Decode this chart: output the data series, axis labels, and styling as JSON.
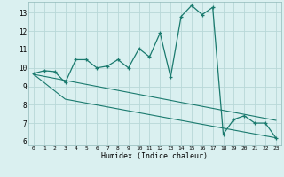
{
  "title": "",
  "xlabel": "Humidex (Indice chaleur)",
  "background_color": "#daf0f0",
  "grid_color": "#b8d8d8",
  "line_color": "#1a7a6e",
  "xlim": [
    -0.5,
    23.5
  ],
  "ylim": [
    5.8,
    13.6
  ],
  "xticks": [
    0,
    1,
    2,
    3,
    4,
    5,
    6,
    7,
    8,
    9,
    10,
    11,
    12,
    13,
    14,
    15,
    16,
    17,
    18,
    19,
    20,
    21,
    22,
    23
  ],
  "yticks": [
    6,
    7,
    8,
    9,
    10,
    11,
    12,
    13
  ],
  "curve1_x": [
    0,
    1,
    2,
    3,
    4,
    5,
    6,
    7,
    8,
    9,
    10,
    11,
    12,
    13,
    14,
    15,
    16,
    17,
    18,
    19,
    20,
    21,
    22,
    23
  ],
  "curve1_y": [
    9.7,
    9.85,
    9.8,
    9.2,
    10.45,
    10.45,
    10.0,
    10.1,
    10.45,
    10.0,
    11.05,
    10.6,
    11.9,
    9.5,
    12.8,
    13.4,
    12.9,
    13.3,
    6.4,
    7.2,
    7.4,
    7.0,
    7.0,
    6.2
  ],
  "curve2_x": [
    0,
    3,
    23
  ],
  "curve2_y": [
    9.65,
    8.3,
    6.2
  ],
  "curve3_x": [
    0,
    23
  ],
  "curve3_y": [
    9.65,
    7.15
  ]
}
